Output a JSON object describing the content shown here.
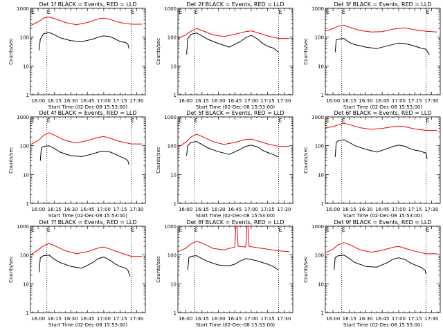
{
  "figure": {
    "ylabel": "Counts/sec",
    "xlabel": "Start Time (02-Dec-08 15:53:00)",
    "x_ticks": [
      "16:00",
      "16:15",
      "16:30",
      "16:45",
      "17:00",
      "17:15",
      "17:30"
    ],
    "y_ticks": [
      "1",
      "10",
      "100",
      "1000"
    ],
    "colors": {
      "events": "#000000",
      "lld": "#ee0000"
    }
  },
  "chart_data": [
    {
      "type": "line",
      "title": "Det 1f BLACK = Events, RED = LLD",
      "x_unit": "minutes after 16:00",
      "xlim": [
        -7,
        98
      ],
      "ylim": [
        1,
        1000
      ],
      "y_scale": "log",
      "attenuator_label": "E",
      "attenuator_times": [
        8,
        85
      ],
      "grid": false,
      "series": [
        {
          "name": "Events",
          "color": "#000000",
          "x": [
            1,
            2,
            5,
            10,
            15,
            20,
            30,
            40,
            50,
            55,
            60,
            66,
            70,
            75,
            80,
            82,
            83
          ],
          "y": [
            35,
            85,
            130,
            145,
            120,
            95,
            75,
            70,
            85,
            100,
            110,
            103,
            88,
            70,
            65,
            58,
            40
          ]
        },
        {
          "name": "LLD",
          "color": "#ee0000",
          "x": [
            -7,
            0,
            5,
            10,
            15,
            25,
            35,
            45,
            55,
            60,
            65,
            75,
            85,
            95
          ],
          "y": [
            250,
            340,
            460,
            500,
            440,
            320,
            270,
            320,
            430,
            460,
            420,
            320,
            280,
            280
          ]
        }
      ]
    },
    {
      "type": "line",
      "title": "Det 2f BLACK = Events, RED = LLD",
      "x_unit": "minutes after 16:00",
      "xlim": [
        -7,
        98
      ],
      "ylim": [
        1,
        1000
      ],
      "y_scale": "log",
      "attenuator_label": "E",
      "attenuator_times": [
        8,
        85
      ],
      "grid": false,
      "series": [
        {
          "name": "Events",
          "color": "#000000",
          "x": [
            1,
            2,
            5,
            10,
            15,
            20,
            30,
            40,
            50,
            55,
            60,
            66,
            70,
            75,
            80,
            85
          ],
          "y": [
            25,
            90,
            125,
            140,
            110,
            85,
            60,
            45,
            70,
            95,
            115,
            85,
            62,
            48,
            42,
            30
          ]
        },
        {
          "name": "LLD",
          "color": "#ee0000",
          "x": [
            -7,
            0,
            5,
            10,
            15,
            25,
            35,
            45,
            55,
            60,
            65,
            75,
            85,
            95
          ],
          "y": [
            90,
            120,
            160,
            200,
            170,
            120,
            105,
            125,
            155,
            165,
            145,
            110,
            90,
            90
          ]
        }
      ]
    },
    {
      "type": "line",
      "title": "Det 3f BLACK = Events, RED = LLD",
      "x_unit": "minutes after 16:00",
      "xlim": [
        -7,
        98
      ],
      "ylim": [
        1,
        1000
      ],
      "y_scale": "log",
      "attenuator_label": "E",
      "attenuator_times": [
        8,
        85
      ],
      "grid": false,
      "series": [
        {
          "name": "Events",
          "color": "#000000",
          "x": [
            2,
            3,
            5,
            10,
            15,
            20,
            30,
            40,
            50,
            60,
            65,
            70,
            75,
            80,
            85,
            88
          ],
          "y": [
            30,
            80,
            85,
            90,
            65,
            55,
            45,
            40,
            50,
            62,
            60,
            55,
            48,
            42,
            38,
            25
          ]
        },
        {
          "name": "LLD",
          "color": "#ee0000",
          "x": [
            -7,
            0,
            5,
            10,
            15,
            25,
            35,
            45,
            55,
            65,
            75,
            85,
            95
          ],
          "y": [
            160,
            200,
            240,
            260,
            220,
            170,
            150,
            155,
            190,
            210,
            180,
            160,
            150
          ]
        }
      ]
    },
    {
      "type": "line",
      "title": "Det 4f BLACK = Events, RED = LLD",
      "x_unit": "minutes after 16:00",
      "xlim": [
        -7,
        98
      ],
      "ylim": [
        1,
        1000
      ],
      "y_scale": "log",
      "attenuator_label": "E",
      "attenuator_times": [
        8,
        85
      ],
      "grid": false,
      "series": [
        {
          "name": "Events",
          "color": "#000000",
          "x": [
            2,
            3,
            5,
            10,
            15,
            20,
            30,
            40,
            50,
            55,
            60,
            66,
            70,
            75,
            80,
            82,
            83
          ],
          "y": [
            30,
            85,
            95,
            100,
            80,
            60,
            45,
            42,
            52,
            60,
            65,
            60,
            52,
            42,
            35,
            30,
            22
          ]
        },
        {
          "name": "LLD",
          "color": "#ee0000",
          "x": [
            -7,
            0,
            5,
            10,
            15,
            25,
            35,
            45,
            55,
            60,
            66,
            75,
            85,
            95
          ],
          "y": [
            110,
            150,
            230,
            280,
            230,
            150,
            125,
            150,
            195,
            210,
            180,
            140,
            115,
            115
          ]
        }
      ]
    },
    {
      "type": "line",
      "title": "Det 5f BLACK = Events, RED = LLD",
      "x_unit": "minutes after 16:00",
      "xlim": [
        -7,
        98
      ],
      "ylim": [
        1,
        1000
      ],
      "y_scale": "log",
      "attenuator_label": "E",
      "attenuator_times": [
        8,
        85
      ],
      "grid": false,
      "series": [
        {
          "name": "Events",
          "color": "#000000",
          "x": [
            1,
            2,
            5,
            10,
            15,
            20,
            30,
            40,
            50,
            55,
            60,
            66,
            70,
            75,
            80,
            85
          ],
          "y": [
            45,
            100,
            130,
            140,
            110,
            85,
            62,
            50,
            75,
            95,
            105,
            90,
            70,
            58,
            50,
            40
          ]
        },
        {
          "name": "LLD",
          "color": "#ee0000",
          "x": [
            -7,
            0,
            5,
            10,
            15,
            25,
            35,
            45,
            55,
            60,
            65,
            75,
            85,
            95
          ],
          "y": [
            90,
            130,
            200,
            250,
            210,
            140,
            110,
            130,
            165,
            170,
            150,
            115,
            95,
            95
          ]
        }
      ]
    },
    {
      "type": "line",
      "title": "Det 6f BLACK = Events, RED = LLD",
      "x_unit": "minutes after 16:00",
      "xlim": [
        -7,
        98
      ],
      "ylim": [
        1,
        1000
      ],
      "y_scale": "log",
      "attenuator_label": "E",
      "attenuator_times": [
        8,
        85
      ],
      "grid": false,
      "series": [
        {
          "name": "Events",
          "color": "#000000",
          "x": [
            2,
            3,
            5,
            10,
            15,
            20,
            30,
            40,
            50,
            55,
            60,
            66,
            70,
            75,
            80,
            85,
            86
          ],
          "y": [
            40,
            130,
            150,
            160,
            130,
            100,
            75,
            60,
            80,
            95,
            105,
            95,
            80,
            70,
            65,
            55,
            35
          ]
        },
        {
          "name": "LLD",
          "color": "#ee0000",
          "x": [
            -7,
            0,
            5,
            10,
            15,
            25,
            35,
            45,
            55,
            60,
            66,
            75,
            85,
            95
          ],
          "y": [
            420,
            460,
            540,
            600,
            540,
            420,
            370,
            400,
            460,
            480,
            450,
            380,
            340,
            340
          ]
        }
      ]
    },
    {
      "type": "line",
      "title": "Det 7f BLACK = Events, RED = LLD",
      "x_unit": "minutes after 16:00",
      "xlim": [
        -7,
        98
      ],
      "ylim": [
        1,
        1000
      ],
      "y_scale": "log",
      "attenuator_label": "E",
      "attenuator_times": [
        8,
        85
      ],
      "grid": false,
      "series": [
        {
          "name": "Events",
          "color": "#000000",
          "x": [
            1,
            2,
            5,
            10,
            15,
            20,
            30,
            40,
            50,
            55,
            60,
            66,
            70,
            75,
            80,
            82,
            84
          ],
          "y": [
            25,
            80,
            95,
            100,
            70,
            55,
            40,
            35,
            55,
            75,
            85,
            65,
            50,
            40,
            35,
            30,
            18
          ]
        },
        {
          "name": "LLD",
          "color": "#ee0000",
          "x": [
            -7,
            0,
            5,
            10,
            15,
            25,
            35,
            45,
            55,
            60,
            66,
            75,
            85,
            95
          ],
          "y": [
            100,
            150,
            210,
            250,
            210,
            140,
            110,
            130,
            175,
            190,
            160,
            120,
            90,
            90
          ]
        }
      ]
    },
    {
      "type": "line",
      "title": "Det 8f BLACK = Events, RED = LLD",
      "x_unit": "minutes after 16:00",
      "xlim": [
        -7,
        98
      ],
      "ylim": [
        1,
        1000
      ],
      "y_scale": "log",
      "attenuator_label": "E",
      "attenuator_times": [
        8,
        85
      ],
      "grid": false,
      "series": [
        {
          "name": "Events",
          "color": "#000000",
          "x": [
            2,
            3,
            5,
            10,
            15,
            20,
            30,
            40,
            45,
            50,
            55,
            60,
            66,
            70,
            75,
            80,
            85
          ],
          "y": [
            30,
            80,
            90,
            95,
            75,
            60,
            45,
            42,
            48,
            62,
            75,
            70,
            62,
            55,
            48,
            40,
            30
          ]
        },
        {
          "name": "LLD",
          "color": "#ee0000",
          "x": [
            -7,
            0,
            5,
            10,
            15,
            25,
            35,
            45,
            46,
            47,
            48,
            55,
            56,
            57,
            58,
            65,
            75,
            85,
            95
          ],
          "y": [
            130,
            170,
            240,
            300,
            260,
            170,
            150,
            190,
            1000,
            1000,
            200,
            190,
            1000,
            1000,
            200,
            180,
            160,
            140,
            130
          ]
        }
      ]
    },
    {
      "type": "line",
      "title": "Det 9f BLACK = Events, RED = LLD",
      "x_unit": "minutes after 16:00",
      "xlim": [
        -7,
        98
      ],
      "ylim": [
        1,
        1000
      ],
      "y_scale": "log",
      "attenuator_label": "E",
      "attenuator_times": [
        8,
        85
      ],
      "grid": false,
      "series": [
        {
          "name": "Events",
          "color": "#000000",
          "x": [
            1,
            2,
            5,
            10,
            15,
            20,
            30,
            40,
            50,
            55,
            60,
            66,
            70,
            75,
            80,
            84,
            85
          ],
          "y": [
            30,
            80,
            95,
            100,
            75,
            55,
            40,
            38,
            55,
            72,
            80,
            70,
            55,
            45,
            38,
            30,
            22
          ]
        },
        {
          "name": "LLD",
          "color": "#ee0000",
          "x": [
            -7,
            0,
            5,
            10,
            15,
            25,
            35,
            45,
            55,
            60,
            66,
            75,
            85,
            95
          ],
          "y": [
            120,
            160,
            230,
            270,
            230,
            150,
            125,
            145,
            185,
            200,
            170,
            135,
            110,
            110
          ]
        }
      ]
    }
  ]
}
